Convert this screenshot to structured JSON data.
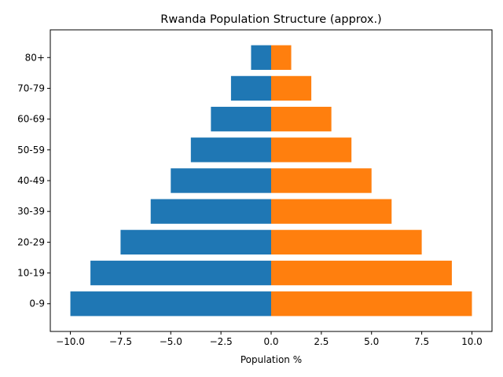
{
  "chart_data": {
    "type": "bar",
    "orientation": "horizontal",
    "title": "Rwanda Population Structure (approx.)",
    "xlabel": "Population %",
    "ylabel": "",
    "categories": [
      "0-9",
      "10-19",
      "20-29",
      "30-39",
      "40-49",
      "50-59",
      "60-69",
      "70-79",
      "80+"
    ],
    "series": [
      {
        "values": [
          -10,
          -9,
          -7.5,
          -6,
          -5,
          -4,
          -3,
          -2,
          -1
        ],
        "color": "#1f77b4"
      },
      {
        "values": [
          10,
          9,
          7.5,
          6,
          5,
          4,
          3,
          2,
          1
        ],
        "color": "#ff7f0e"
      }
    ],
    "xlim": [
      -11,
      11
    ],
    "xticks": [
      -10.0,
      -7.5,
      -5.0,
      -2.5,
      0.0,
      2.5,
      5.0,
      7.5,
      10.0
    ],
    "xtick_labels": [
      "−10.0",
      "−7.5",
      "−5.0",
      "−2.5",
      "0.0",
      "2.5",
      "5.0",
      "7.5",
      "10.0"
    ],
    "grid": false,
    "legend": "none"
  }
}
